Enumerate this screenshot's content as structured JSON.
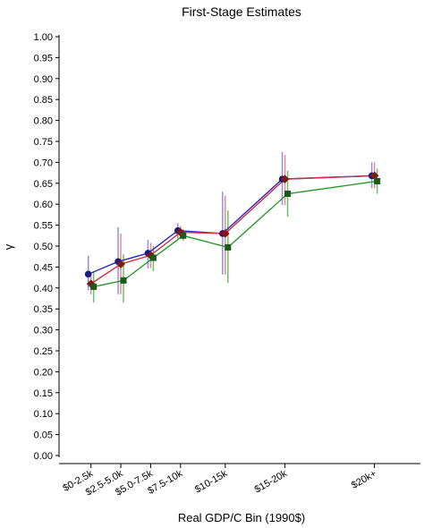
{
  "chart_data": {
    "type": "line",
    "title": "First-Stage Estimates",
    "xlabel": "Real GDP/C Bin (1990$)",
    "ylabel": "γ",
    "categories": [
      "$0-2.5k",
      "$2.5-5.0k",
      "$5.0-7.5k",
      "$7.5-10k",
      "$10-15k",
      "$15-20k",
      "$20k+"
    ],
    "x": [
      1.25,
      3.75,
      6.25,
      8.75,
      12.5,
      17.5,
      25.0
    ],
    "ylim": [
      0,
      1.0
    ],
    "yticks": [
      "0.00",
      "0.05",
      "0.10",
      "0.15",
      "0.20",
      "0.25",
      "0.30",
      "0.35",
      "0.40",
      "0.45",
      "0.50",
      "0.55",
      "0.60",
      "0.65",
      "0.70",
      "0.75",
      "0.80",
      "0.85",
      "0.90",
      "0.95",
      "1.00"
    ],
    "grid": false,
    "legend": "none",
    "series": [
      {
        "color": "#2828c8",
        "marker": "circle",
        "values": [
          0.433,
          0.463,
          0.483,
          0.537,
          0.53,
          0.66,
          0.668
        ],
        "lower": [
          0.395,
          0.385,
          0.447,
          0.518,
          0.432,
          0.598,
          0.638
        ],
        "upper": [
          0.477,
          0.545,
          0.515,
          0.555,
          0.63,
          0.725,
          0.7
        ]
      },
      {
        "color": "#d03040",
        "marker": "diamond",
        "values": [
          0.41,
          0.457,
          0.478,
          0.533,
          0.53,
          0.66,
          0.668
        ],
        "lower": [
          0.385,
          0.385,
          0.447,
          0.52,
          0.432,
          0.598,
          0.638
        ],
        "upper": [
          0.435,
          0.53,
          0.508,
          0.548,
          0.62,
          0.718,
          0.7
        ]
      },
      {
        "color": "#2a9a2a",
        "marker": "square",
        "values": [
          0.403,
          0.418,
          0.472,
          0.525,
          0.497,
          0.625,
          0.655
        ],
        "lower": [
          0.365,
          0.365,
          0.44,
          0.513,
          0.412,
          0.57,
          0.625
        ],
        "upper": [
          0.44,
          0.48,
          0.5,
          0.54,
          0.585,
          0.68,
          0.685
        ]
      }
    ]
  }
}
